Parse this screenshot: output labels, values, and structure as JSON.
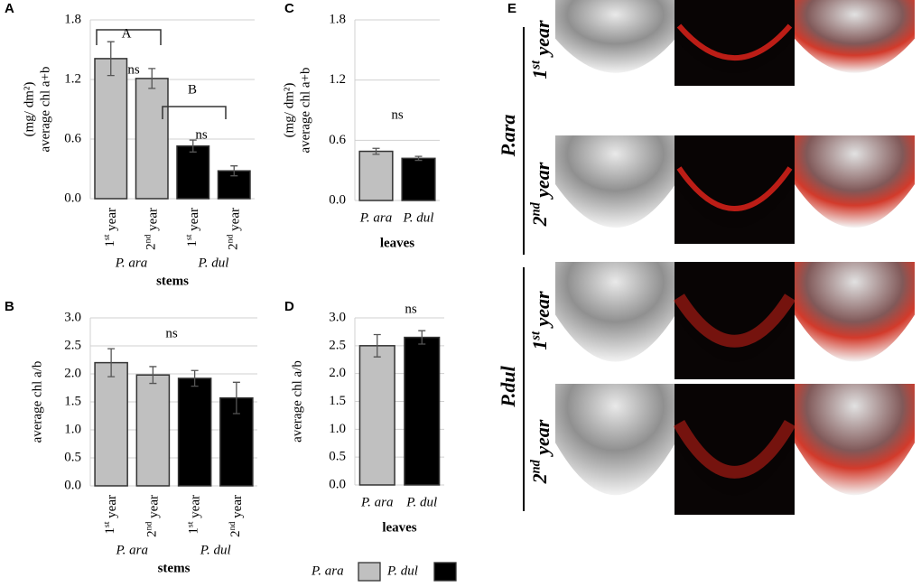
{
  "chart_data": [
    {
      "type": "bar",
      "letter": "A",
      "ylabel": [
        "average chl a+b",
        "(mg/ dm²)"
      ],
      "xlabel": "stems",
      "categories": [
        "1st year",
        "2nd year",
        "1st year",
        "2nd year"
      ],
      "groups": [
        "P. ara",
        "P. dul"
      ],
      "values": [
        1.41,
        1.21,
        0.53,
        0.28
      ],
      "errors": [
        0.17,
        0.1,
        0.06,
        0.05
      ],
      "colors": [
        "#c0c0c0",
        "#c0c0c0",
        "#000000",
        "#000000"
      ],
      "ylim": [
        0,
        1.8
      ],
      "yticks": [
        {
          "value": 0,
          "label": "0.0"
        },
        0.6,
        1.2,
        1.8
      ],
      "grid": true,
      "annotations": [
        "A",
        "ns",
        "B",
        "ns"
      ]
    },
    {
      "type": "bar",
      "letter": "B",
      "ylabel": [
        "average chl a/b"
      ],
      "xlabel": "stems",
      "categories": [
        "1st year",
        "2nd year",
        "1st year",
        "2nd year"
      ],
      "groups": [
        "P. ara",
        "P. dul"
      ],
      "values": [
        2.2,
        1.98,
        1.92,
        1.57
      ],
      "errors": [
        0.25,
        0.15,
        0.14,
        0.28
      ],
      "colors": [
        "#c0c0c0",
        "#c0c0c0",
        "#000000",
        "#000000"
      ],
      "ylim": [
        0,
        3
      ],
      "yticks": [
        {
          "value": 0,
          "label": "0.0"
        },
        0.5,
        {
          "value": 1,
          "label": "1.0"
        },
        1.5,
        {
          "value": 2,
          "label": "2.0"
        },
        2.5,
        {
          "value": 3,
          "label": "3.0"
        }
      ],
      "grid": true,
      "annotations": [
        "ns"
      ]
    },
    {
      "type": "bar",
      "letter": "C",
      "ylabel": [
        "average chl a+b",
        "(mg/ dm²)"
      ],
      "xlabel": "leaves",
      "categories": [
        "P. ara",
        "P. dul"
      ],
      "values": [
        0.49,
        0.42
      ],
      "errors": [
        0.03,
        0.02
      ],
      "colors": [
        "#c0c0c0",
        "#000000"
      ],
      "ylim": [
        0,
        1.8
      ],
      "yticks": [
        {
          "value": 0,
          "label": "0.0"
        },
        0.6,
        1.2,
        1.8
      ],
      "grid": true,
      "annotations": [
        "ns"
      ]
    },
    {
      "type": "bar",
      "letter": "D",
      "ylabel": [
        "average chl a/b"
      ],
      "xlabel": "leaves",
      "categories": [
        "P. ara",
        "P. dul"
      ],
      "values": [
        2.5,
        2.65
      ],
      "errors": [
        0.2,
        0.12
      ],
      "colors": [
        "#c0c0c0",
        "#000000"
      ],
      "ylim": [
        0,
        3
      ],
      "yticks": [
        {
          "value": 0,
          "label": "0.0"
        },
        0.5,
        {
          "value": 1,
          "label": "1.0"
        },
        1.5,
        {
          "value": 2,
          "label": "2.0"
        },
        2.5,
        {
          "value": 3,
          "label": "3.0"
        }
      ],
      "grid": true,
      "annotations": [
        "ns"
      ],
      "legend": {
        "position": "bottom",
        "entries": [
          {
            "name": "P. ara",
            "color": "#c0c0c0"
          },
          {
            "name": "P. dul",
            "color": "#000000"
          }
        ]
      }
    }
  ],
  "panel_e": {
    "letter": "E",
    "groups": [
      {
        "name": "P.ara",
        "rows": [
          "1st year",
          "2nd year"
        ]
      },
      {
        "name": "P.dul",
        "rows": [
          "1st year",
          "2nd year"
        ]
      }
    ]
  }
}
